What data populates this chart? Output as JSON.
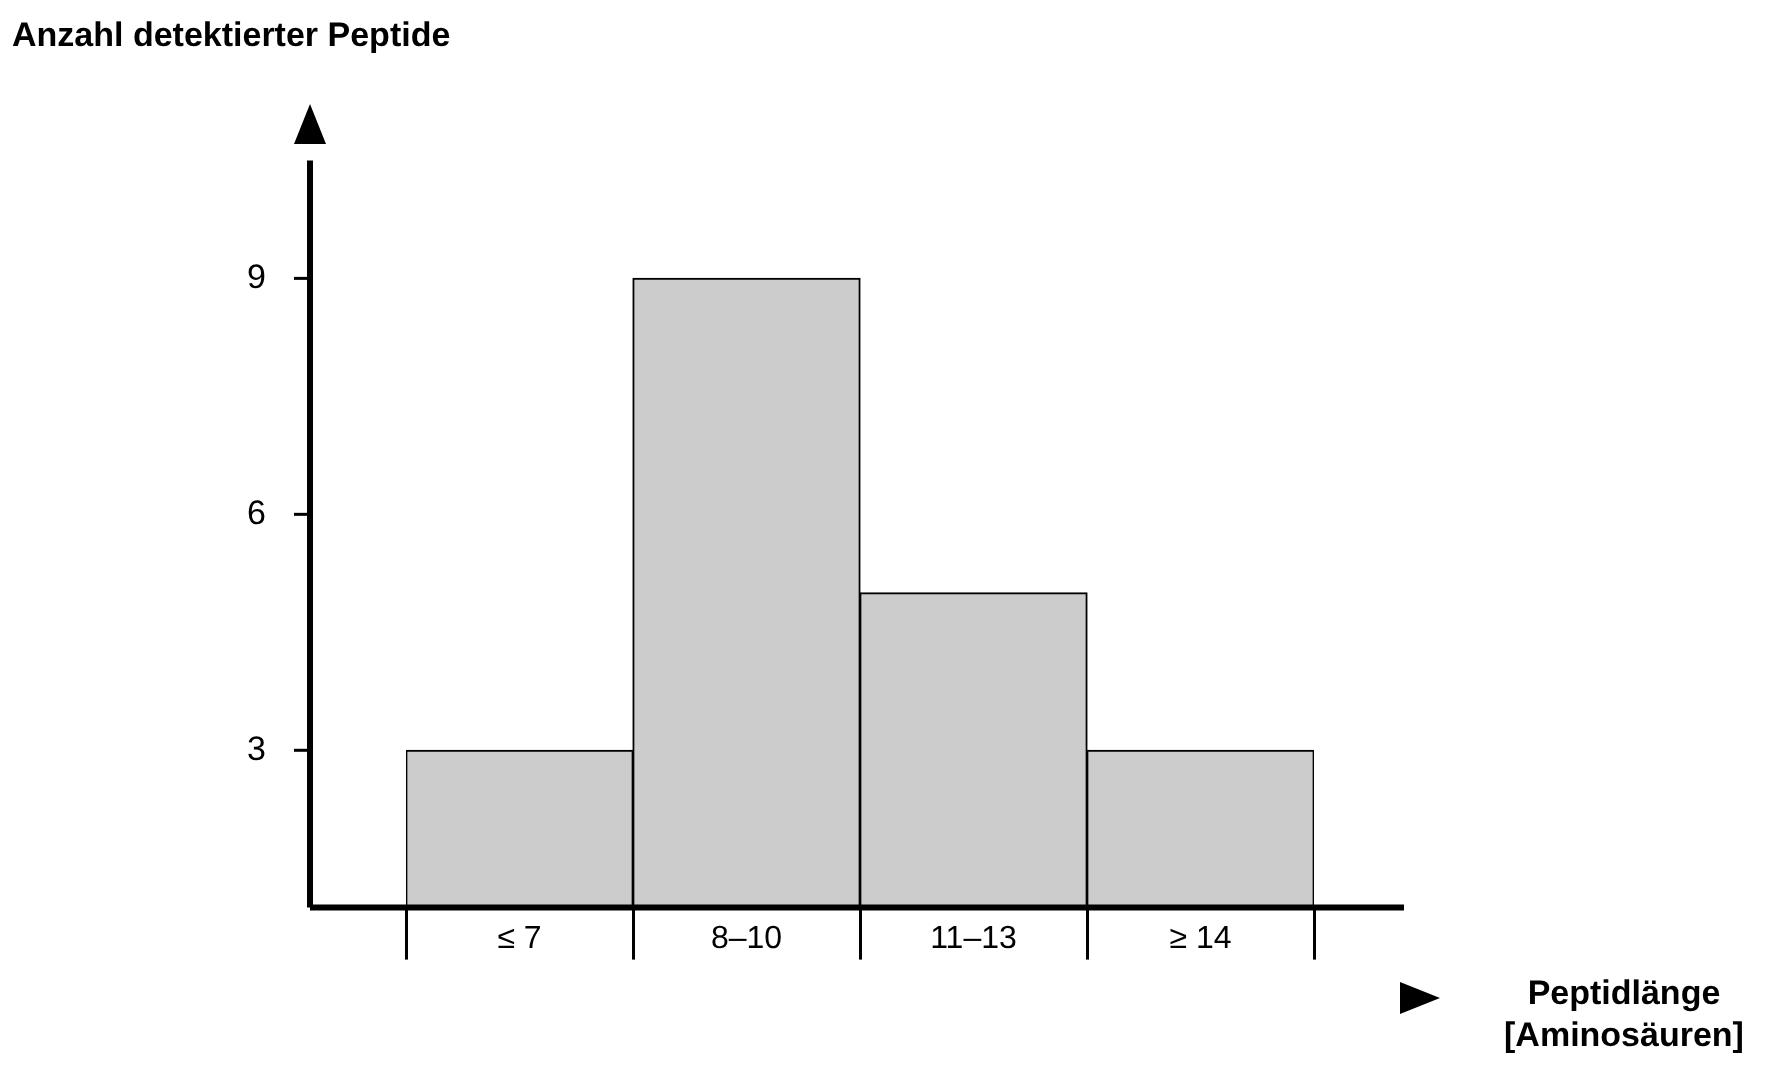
{
  "chart_data": {
    "type": "bar",
    "xlabel": "Peptidlänge [Aminosäuren]",
    "ylabel": "Anzahl detektierter Peptide",
    "categories": [
      "≤ 7",
      "8–10",
      "11–13",
      "≥ 14"
    ],
    "values": [
      3,
      9,
      5,
      3
    ],
    "color": "#cccccc",
    "ylim": [
      1,
      10.5
    ],
    "yticks": [
      3,
      6,
      9
    ],
    "grid": false,
    "legend": false
  }
}
